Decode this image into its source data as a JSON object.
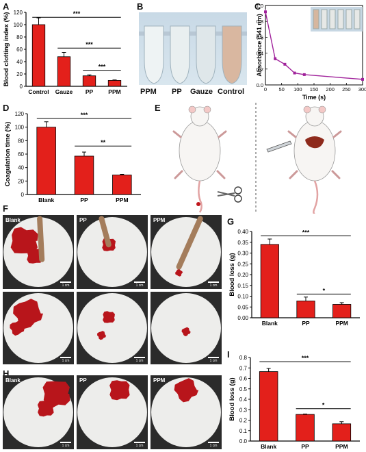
{
  "panel_letters": [
    "A",
    "B",
    "C",
    "D",
    "E",
    "F",
    "G",
    "H",
    "I"
  ],
  "sig": {
    "three": "***",
    "two": "**",
    "one": "*"
  },
  "photo_b": {
    "tube_labels": [
      "PPM",
      "PP",
      "Gauze",
      "Control"
    ]
  },
  "photo_f": {
    "labels": [
      "Blank",
      "PP",
      "PPM"
    ],
    "scale": "1 cm"
  },
  "photo_h": {
    "labels": [
      "Blank",
      "PP",
      "PPM"
    ],
    "scale": "1 cm"
  },
  "colors": {
    "bar": "#e3201b",
    "line": "#a0229b",
    "blood": "#b8151b",
    "paper": "#ededeb"
  },
  "chart_data": [
    {
      "id": "A",
      "type": "bar",
      "categories": [
        "Control",
        "Gauze",
        "PP",
        "PPM"
      ],
      "values": [
        100,
        48,
        17,
        9.5
      ],
      "errors": [
        11,
        7,
        1.5,
        0.8
      ],
      "ylabel": "Blood clotting index (%)",
      "ylim": [
        0,
        120
      ],
      "yticks": [
        0,
        20,
        40,
        60,
        80,
        100,
        120
      ],
      "sig": [
        {
          "from": 0,
          "to": 3,
          "y": 112,
          "text": "***"
        },
        {
          "from": 1,
          "to": 3,
          "y": 62,
          "text": "***"
        },
        {
          "from": 2,
          "to": 3,
          "y": 26,
          "text": "***"
        }
      ]
    },
    {
      "id": "C",
      "type": "line",
      "x": [
        0,
        30,
        60,
        90,
        120,
        300
      ],
      "y": [
        0.92,
        0.33,
        0.26,
        0.15,
        0.13,
        0.07
      ],
      "errors": [
        0.03,
        0.02,
        0.015,
        0.01,
        0.01,
        0.01
      ],
      "xlabel": "Time (s)",
      "ylabel": "Absorbance (541 nm)",
      "xlim": [
        0,
        300
      ],
      "ylim": [
        0,
        1.0
      ],
      "xticks": [
        0,
        50,
        100,
        150,
        200,
        250,
        300
      ],
      "yticks": [
        0.0,
        0.2,
        0.4,
        0.6,
        0.8,
        1.0
      ]
    },
    {
      "id": "D",
      "type": "bar",
      "categories": [
        "Blank",
        "PP",
        "PPM"
      ],
      "values": [
        100,
        57,
        29
      ],
      "errors": [
        8,
        6,
        1
      ],
      "ylabel": "Coagulation time (%)",
      "ylim": [
        0,
        120
      ],
      "yticks": [
        0,
        20,
        40,
        60,
        80,
        100,
        120
      ],
      "sig": [
        {
          "from": 0,
          "to": 2,
          "y": 113,
          "text": "***"
        },
        {
          "from": 1,
          "to": 2,
          "y": 72,
          "text": "**"
        }
      ]
    },
    {
      "id": "G",
      "type": "bar",
      "categories": [
        "Blank",
        "PP",
        "PPM"
      ],
      "values": [
        0.34,
        0.078,
        0.062
      ],
      "errors": [
        0.025,
        0.018,
        0.008
      ],
      "ylabel": "Blood loss (g)",
      "ylim": [
        0,
        0.4
      ],
      "yticks": [
        0.0,
        0.05,
        0.1,
        0.15,
        0.2,
        0.25,
        0.3,
        0.35,
        0.4
      ],
      "sig": [
        {
          "from": 0,
          "to": 2,
          "y": 0.38,
          "text": "***"
        },
        {
          "from": 1,
          "to": 2,
          "y": 0.11,
          "text": "*"
        }
      ]
    },
    {
      "id": "I",
      "type": "bar",
      "categories": [
        "Blank",
        "PP",
        "PPM"
      ],
      "values": [
        0.665,
        0.255,
        0.165
      ],
      "errors": [
        0.03,
        0.004,
        0.02
      ],
      "ylabel": "Blood loss (g)",
      "ylim": [
        0,
        0.8
      ],
      "yticks": [
        0.0,
        0.1,
        0.2,
        0.3,
        0.4,
        0.5,
        0.6,
        0.7,
        0.8
      ],
      "sig": [
        {
          "from": 0,
          "to": 2,
          "y": 0.76,
          "text": "***"
        },
        {
          "from": 1,
          "to": 2,
          "y": 0.31,
          "text": "*"
        }
      ]
    }
  ]
}
